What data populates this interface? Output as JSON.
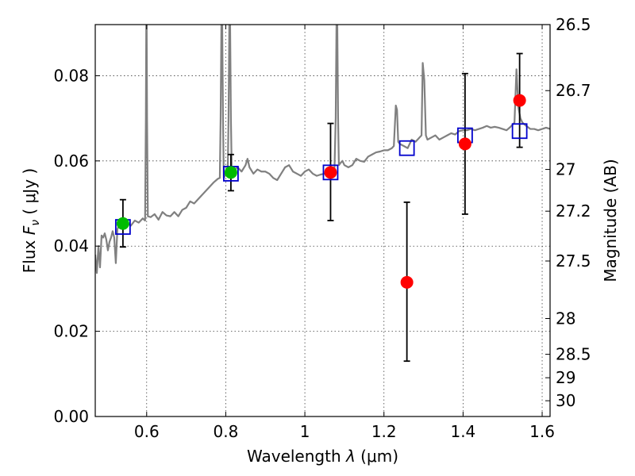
{
  "chart_data": {
    "type": "scatter",
    "xlabel": "Wavelength  λ (μm)",
    "ylabel": "Flux  F_ν  ( μJy )",
    "ylabel_parts": {
      "prefix": "Flux  ",
      "symbol": "F",
      "subscript": "ν",
      "suffix": "  ( μJy )"
    },
    "xlabel_parts": {
      "prefix": "Wavelength  ",
      "symbol": "λ",
      "suffix": " (μm)"
    },
    "right_ylabel": "Magnitude (AB)",
    "xlim": [
      0.47,
      1.62
    ],
    "ylim": [
      0.0,
      0.092
    ],
    "x_ticks": [
      0.6,
      0.8,
      1.0,
      1.2,
      1.4,
      1.6
    ],
    "x_tick_labels": [
      "0.6",
      "0.8",
      "1",
      "1.2",
      "1.4",
      "1.6"
    ],
    "y_ticks": [
      0.0,
      0.02,
      0.04,
      0.06,
      0.08
    ],
    "y_tick_labels": [
      "0.00",
      "0.02",
      "0.04",
      "0.06",
      "0.08"
    ],
    "right_ticks": [
      {
        "label": "26.5",
        "flux": 0.092
      },
      {
        "label": "26.7",
        "flux": 0.0765
      },
      {
        "label": "27",
        "flux": 0.058
      },
      {
        "label": "27.2",
        "flux": 0.0482
      },
      {
        "label": "27.5",
        "flux": 0.0365
      },
      {
        "label": "28",
        "flux": 0.023
      },
      {
        "label": "28.5",
        "flux": 0.0146
      },
      {
        "label": "29",
        "flux": 0.0091
      },
      {
        "label": "30",
        "flux": 0.0037
      }
    ],
    "grid": true,
    "colors": {
      "model": "#808080",
      "model_points": "#0000cc",
      "detections": "#ff0000",
      "green_points": "#00bb00",
      "errorbar": "#000000"
    },
    "model_spectrum": [
      [
        0.47,
        0.038
      ],
      [
        0.474,
        0.0337
      ],
      [
        0.478,
        0.04
      ],
      [
        0.482,
        0.035
      ],
      [
        0.486,
        0.0425
      ],
      [
        0.49,
        0.042
      ],
      [
        0.494,
        0.043
      ],
      [
        0.498,
        0.0415
      ],
      [
        0.502,
        0.039
      ],
      [
        0.506,
        0.041
      ],
      [
        0.51,
        0.042
      ],
      [
        0.514,
        0.0435
      ],
      [
        0.518,
        0.042
      ],
      [
        0.522,
        0.036
      ],
      [
        0.526,
        0.044
      ],
      [
        0.53,
        0.0448
      ],
      [
        0.54,
        0.045
      ],
      [
        0.55,
        0.0455
      ],
      [
        0.56,
        0.0448
      ],
      [
        0.57,
        0.046
      ],
      [
        0.58,
        0.0455
      ],
      [
        0.59,
        0.0465
      ],
      [
        0.596,
        0.046
      ],
      [
        0.598,
        0.07
      ],
      [
        0.599,
        0.092
      ],
      [
        0.6,
        0.092
      ],
      [
        0.601,
        0.07
      ],
      [
        0.603,
        0.047
      ],
      [
        0.61,
        0.0468
      ],
      [
        0.62,
        0.0475
      ],
      [
        0.63,
        0.0462
      ],
      [
        0.64,
        0.048
      ],
      [
        0.65,
        0.0472
      ],
      [
        0.66,
        0.047
      ],
      [
        0.67,
        0.048
      ],
      [
        0.68,
        0.047
      ],
      [
        0.69,
        0.0485
      ],
      [
        0.7,
        0.049
      ],
      [
        0.71,
        0.0505
      ],
      [
        0.72,
        0.05
      ],
      [
        0.73,
        0.051
      ],
      [
        0.74,
        0.052
      ],
      [
        0.75,
        0.053
      ],
      [
        0.76,
        0.054
      ],
      [
        0.77,
        0.055
      ],
      [
        0.78,
        0.0558
      ],
      [
        0.785,
        0.056
      ],
      [
        0.787,
        0.07
      ],
      [
        0.789,
        0.092
      ],
      [
        0.791,
        0.092
      ],
      [
        0.793,
        0.07
      ],
      [
        0.795,
        0.056
      ],
      [
        0.8,
        0.057
      ],
      [
        0.805,
        0.0575
      ],
      [
        0.807,
        0.07
      ],
      [
        0.809,
        0.092
      ],
      [
        0.811,
        0.092
      ],
      [
        0.813,
        0.07
      ],
      [
        0.815,
        0.058
      ],
      [
        0.82,
        0.0578
      ],
      [
        0.83,
        0.0585
      ],
      [
        0.84,
        0.0575
      ],
      [
        0.85,
        0.059
      ],
      [
        0.855,
        0.0605
      ],
      [
        0.86,
        0.0585
      ],
      [
        0.87,
        0.057
      ],
      [
        0.88,
        0.058
      ],
      [
        0.89,
        0.0575
      ],
      [
        0.9,
        0.0575
      ],
      [
        0.91,
        0.057
      ],
      [
        0.92,
        0.056
      ],
      [
        0.93,
        0.0555
      ],
      [
        0.94,
        0.057
      ],
      [
        0.95,
        0.0585
      ],
      [
        0.96,
        0.059
      ],
      [
        0.97,
        0.0575
      ],
      [
        0.98,
        0.057
      ],
      [
        0.99,
        0.0565
      ],
      [
        1.0,
        0.0575
      ],
      [
        1.01,
        0.058
      ],
      [
        1.02,
        0.057
      ],
      [
        1.03,
        0.0565
      ],
      [
        1.04,
        0.0568
      ],
      [
        1.05,
        0.057
      ],
      [
        1.06,
        0.0575
      ],
      [
        1.07,
        0.058
      ],
      [
        1.075,
        0.0585
      ],
      [
        1.078,
        0.07
      ],
      [
        1.08,
        0.092
      ],
      [
        1.082,
        0.092
      ],
      [
        1.084,
        0.07
      ],
      [
        1.086,
        0.059
      ],
      [
        1.09,
        0.0595
      ],
      [
        1.095,
        0.06
      ],
      [
        1.1,
        0.059
      ],
      [
        1.11,
        0.0585
      ],
      [
        1.12,
        0.059
      ],
      [
        1.13,
        0.0605
      ],
      [
        1.14,
        0.06
      ],
      [
        1.15,
        0.0598
      ],
      [
        1.16,
        0.061
      ],
      [
        1.17,
        0.0615
      ],
      [
        1.18,
        0.062
      ],
      [
        1.19,
        0.0622
      ],
      [
        1.2,
        0.0625
      ],
      [
        1.21,
        0.0625
      ],
      [
        1.22,
        0.063
      ],
      [
        1.225,
        0.0635
      ],
      [
        1.23,
        0.073
      ],
      [
        1.233,
        0.072
      ],
      [
        1.236,
        0.0645
      ],
      [
        1.24,
        0.064
      ],
      [
        1.25,
        0.0635
      ],
      [
        1.26,
        0.063
      ],
      [
        1.27,
        0.065
      ],
      [
        1.28,
        0.0645
      ],
      [
        1.285,
        0.065
      ],
      [
        1.29,
        0.0655
      ],
      [
        1.295,
        0.066
      ],
      [
        1.298,
        0.083
      ],
      [
        1.302,
        0.079
      ],
      [
        1.306,
        0.066
      ],
      [
        1.31,
        0.065
      ],
      [
        1.32,
        0.0655
      ],
      [
        1.33,
        0.066
      ],
      [
        1.34,
        0.065
      ],
      [
        1.35,
        0.0655
      ],
      [
        1.36,
        0.066
      ],
      [
        1.37,
        0.0665
      ],
      [
        1.38,
        0.0662
      ],
      [
        1.39,
        0.067
      ],
      [
        1.4,
        0.0672
      ],
      [
        1.41,
        0.0672
      ],
      [
        1.42,
        0.0675
      ],
      [
        1.43,
        0.0672
      ],
      [
        1.44,
        0.0675
      ],
      [
        1.45,
        0.0678
      ],
      [
        1.46,
        0.0682
      ],
      [
        1.47,
        0.0678
      ],
      [
        1.48,
        0.068
      ],
      [
        1.49,
        0.0678
      ],
      [
        1.5,
        0.0675
      ],
      [
        1.51,
        0.0672
      ],
      [
        1.52,
        0.068
      ],
      [
        1.53,
        0.069
      ],
      [
        1.535,
        0.0815
      ],
      [
        1.54,
        0.0725
      ],
      [
        1.545,
        0.07
      ],
      [
        1.55,
        0.069
      ],
      [
        1.56,
        0.0682
      ],
      [
        1.57,
        0.0675
      ],
      [
        1.58,
        0.0675
      ],
      [
        1.59,
        0.0672
      ],
      [
        1.6,
        0.0675
      ],
      [
        1.61,
        0.0678
      ],
      [
        1.62,
        0.0675
      ]
    ],
    "model_points": [
      {
        "x": 0.54,
        "y": 0.0445
      },
      {
        "x": 0.813,
        "y": 0.057
      },
      {
        "x": 1.065,
        "y": 0.0573
      },
      {
        "x": 1.258,
        "y": 0.063
      },
      {
        "x": 1.405,
        "y": 0.066
      },
      {
        "x": 1.543,
        "y": 0.067
      }
    ],
    "detections": [
      {
        "x": 0.54,
        "y": 0.0453,
        "err_low": 0.0055,
        "err_high": 0.0056,
        "color": "green"
      },
      {
        "x": 0.813,
        "y": 0.0573,
        "err_low": 0.0043,
        "err_high": 0.0042,
        "color": "green"
      },
      {
        "x": 1.065,
        "y": 0.0573,
        "err_low": 0.0113,
        "err_high": 0.0115,
        "color": "red"
      },
      {
        "x": 1.258,
        "y": 0.0315,
        "err_low": 0.0185,
        "err_high": 0.0188,
        "color": "red"
      },
      {
        "x": 1.405,
        "y": 0.064,
        "err_low": 0.0165,
        "err_high": 0.0165,
        "color": "red"
      },
      {
        "x": 1.543,
        "y": 0.0742,
        "err_low": 0.011,
        "err_high": 0.011,
        "color": "red"
      }
    ]
  }
}
